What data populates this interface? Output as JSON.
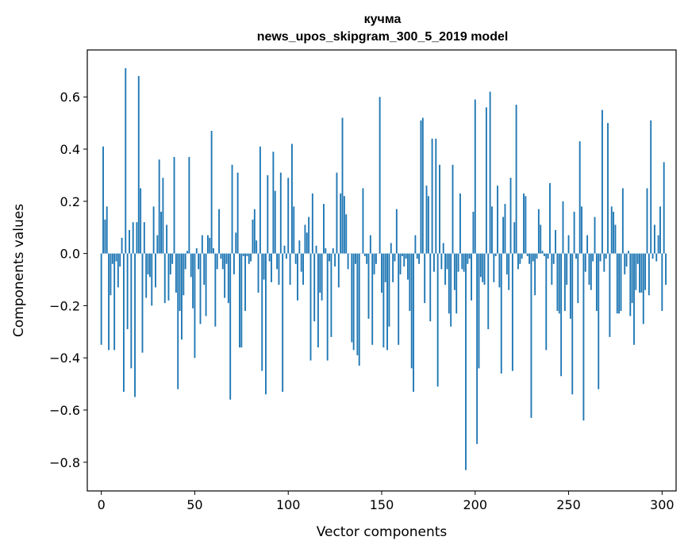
{
  "chart_data": {
    "type": "bar",
    "title_lines": [
      "кучма",
      "news_upos_skipgram_300_5_2019 model"
    ],
    "xlabel": "Vector components",
    "ylabel": "Components values",
    "xlim": [
      -7.5,
      307.5
    ],
    "ylim": [
      -0.91,
      0.78
    ],
    "xticks": [
      0,
      50,
      100,
      150,
      200,
      250,
      300
    ],
    "xtick_labels": [
      "0",
      "50",
      "100",
      "150",
      "200",
      "250",
      "300"
    ],
    "yticks": [
      -0.8,
      -0.6,
      -0.4,
      -0.2,
      0.0,
      0.2,
      0.4,
      0.6
    ],
    "ytick_labels": [
      "−0.8",
      "−0.6",
      "−0.4",
      "−0.2",
      "0.0",
      "0.2",
      "0.4",
      "0.6"
    ],
    "grid": false,
    "bar_color": "#1f77b4",
    "x_start": 0,
    "values": [
      -0.35,
      0.41,
      0.13,
      0.18,
      -0.37,
      -0.16,
      -0.04,
      -0.37,
      -0.03,
      -0.13,
      -0.05,
      0.06,
      -0.53,
      0.71,
      -0.29,
      0.09,
      -0.44,
      0.12,
      -0.55,
      0.12,
      0.68,
      0.25,
      -0.38,
      0.12,
      -0.17,
      -0.08,
      -0.09,
      -0.2,
      0.18,
      -0.13,
      0.07,
      0.36,
      0.16,
      0.29,
      -0.19,
      0.11,
      -0.18,
      -0.08,
      -0.04,
      0.37,
      -0.15,
      -0.52,
      -0.22,
      -0.33,
      -0.16,
      -0.06,
      0.01,
      0.37,
      -0.09,
      -0.21,
      -0.4,
      0.02,
      -0.06,
      -0.27,
      0.07,
      -0.12,
      -0.24,
      0.07,
      0.06,
      0.47,
      0.02,
      -0.28,
      -0.06,
      0.17,
      -0.02,
      -0.06,
      -0.17,
      -0.04,
      -0.19,
      -0.56,
      0.34,
      -0.08,
      0.08,
      0.31,
      -0.36,
      -0.36,
      -0.01,
      -0.22,
      -0.01,
      -0.04,
      -0.03,
      0.13,
      0.17,
      0.05,
      -0.15,
      0.41,
      -0.45,
      -0.1,
      -0.54,
      0.3,
      -0.03,
      -0.11,
      0.39,
      0.24,
      -0.06,
      -0.12,
      0.31,
      -0.53,
      0.03,
      -0.02,
      0.29,
      -0.12,
      0.42,
      0.18,
      -0.04,
      -0.18,
      0.05,
      -0.07,
      -0.12,
      0.11,
      0.08,
      0.14,
      -0.41,
      0.23,
      -0.26,
      0.03,
      -0.36,
      -0.15,
      -0.18,
      0.19,
      0.02,
      -0.41,
      -0.03,
      -0.32,
      0.02,
      -0.05,
      0.31,
      -0.13,
      0.23,
      0.52,
      0.22,
      0.15,
      -0.06,
      0.0,
      -0.34,
      -0.37,
      -0.04,
      -0.39,
      -0.43,
      0.0,
      0.25,
      -0.01,
      -0.04,
      -0.25,
      0.07,
      -0.35,
      -0.08,
      -0.04,
      0.0,
      0.6,
      -0.15,
      -0.36,
      -0.11,
      -0.37,
      -0.28,
      0.04,
      -0.11,
      -0.03,
      0.17,
      -0.35,
      -0.08,
      -0.01,
      -0.05,
      -0.02,
      -0.1,
      -0.22,
      -0.44,
      -0.53,
      0.07,
      -0.02,
      -0.04,
      0.51,
      0.52,
      -0.19,
      0.26,
      0.22,
      -0.26,
      0.44,
      -0.07,
      0.44,
      -0.51,
      0.34,
      -0.06,
      0.04,
      -0.12,
      -0.06,
      -0.23,
      -0.28,
      0.34,
      -0.14,
      -0.23,
      -0.07,
      0.23,
      -0.06,
      -0.07,
      -0.83,
      -0.04,
      -0.02,
      -0.18,
      0.16,
      0.59,
      -0.73,
      -0.44,
      -0.09,
      -0.11,
      -0.12,
      0.56,
      -0.29,
      0.62,
      0.18,
      -0.11,
      -0.01,
      0.26,
      -0.13,
      -0.46,
      0.14,
      0.19,
      -0.08,
      -0.14,
      0.29,
      -0.45,
      0.12,
      0.57,
      -0.06,
      -0.04,
      -0.02,
      0.23,
      0.22,
      -0.01,
      -0.04,
      -0.63,
      -0.03,
      -0.16,
      -0.02,
      0.17,
      0.11,
      0.01,
      -0.01,
      -0.37,
      -0.02,
      0.27,
      -0.12,
      -0.04,
      0.09,
      -0.22,
      -0.23,
      -0.47,
      0.2,
      -0.22,
      -0.12,
      0.07,
      -0.25,
      -0.54,
      0.16,
      -0.02,
      -0.19,
      0.43,
      0.18,
      -0.64,
      -0.07,
      0.07,
      -0.12,
      -0.14,
      -0.03,
      0.14,
      -0.22,
      -0.52,
      -0.03,
      0.55,
      -0.07,
      -0.02,
      0.5,
      -0.32,
      0.18,
      0.16,
      0.11,
      -0.23,
      -0.23,
      -0.22,
      0.25,
      -0.08,
      -0.05,
      0.01,
      -0.24,
      -0.19,
      -0.35,
      -0.14,
      -0.04,
      -0.15,
      -0.15,
      -0.27,
      -0.14,
      0.25,
      -0.16,
      0.51,
      -0.02,
      0.11,
      -0.03,
      0.07,
      0.18,
      -0.22,
      0.35,
      -0.12
    ]
  }
}
